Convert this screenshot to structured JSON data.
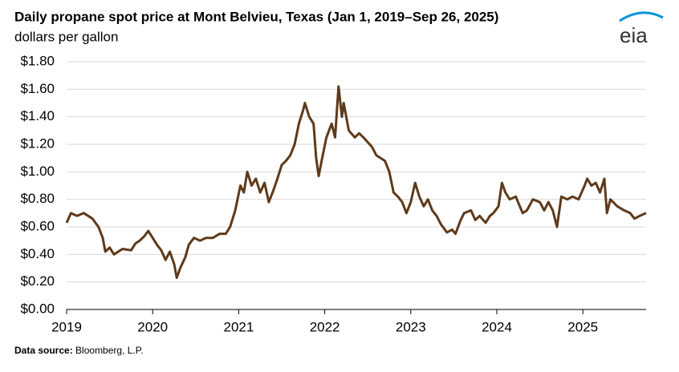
{
  "chart_data": {
    "type": "line",
    "title": "Daily propane spot price at Mont Belvieu, Texas (Jan 1, 2019–Sep 26, 2025)",
    "subtitle": "dollars per gallon",
    "logo": "eia",
    "source_label": "Data source:",
    "source": "Bloomberg, L.P.",
    "xlim": [
      2019,
      2025.735
    ],
    "xticks": [
      2019,
      2020,
      2021,
      2022,
      2023,
      2024,
      2025
    ],
    "ylim": [
      0,
      1.8
    ],
    "yticks": [
      {
        "value": 0,
        "label": "$0.00"
      },
      {
        "value": 0.2,
        "label": "$0.20"
      },
      {
        "value": 0.4,
        "label": "$0.40"
      },
      {
        "value": 0.6,
        "label": "$0.60"
      },
      {
        "value": 0.8,
        "label": "$0.80"
      },
      {
        "value": 1.0,
        "label": "$1.00"
      },
      {
        "value": 1.2,
        "label": "$1.20"
      },
      {
        "value": 1.4,
        "label": "$1.40"
      },
      {
        "value": 1.6,
        "label": "$1.60"
      },
      {
        "value": 1.8,
        "label": "$1.80"
      }
    ],
    "grid": true,
    "x": [
      2019,
      2019.05,
      2019.12,
      2019.2,
      2019.3,
      2019.37,
      2019.42,
      2019.45,
      2019.5,
      2019.55,
      2019.65,
      2019.75,
      2019.8,
      2019.85,
      2019.9,
      2019.95,
      2020.0,
      2020.05,
      2020.1,
      2020.15,
      2020.2,
      2020.25,
      2020.28,
      2020.32,
      2020.38,
      2020.42,
      2020.48,
      2020.55,
      2020.62,
      2020.7,
      2020.78,
      2020.85,
      2020.9,
      2020.96,
      2021.02,
      2021.06,
      2021.1,
      2021.15,
      2021.2,
      2021.25,
      2021.3,
      2021.35,
      2021.4,
      2021.45,
      2021.5,
      2021.55,
      2021.6,
      2021.65,
      2021.7,
      2021.75,
      2021.77,
      2021.82,
      2021.87,
      2021.9,
      2021.93,
      2021.97,
      2022.02,
      2022.08,
      2022.12,
      2022.16,
      2022.2,
      2022.22,
      2022.28,
      2022.35,
      2022.4,
      2022.45,
      2022.55,
      2022.6,
      2022.7,
      2022.75,
      2022.8,
      2022.85,
      2022.9,
      2022.95,
      2023.0,
      2023.05,
      2023.1,
      2023.15,
      2023.2,
      2023.25,
      2023.3,
      2023.35,
      2023.42,
      2023.48,
      2023.52,
      2023.58,
      2023.62,
      2023.7,
      2023.75,
      2023.8,
      2023.87,
      2023.92,
      2023.96,
      2024.02,
      2024.06,
      2024.1,
      2024.15,
      2024.22,
      2024.3,
      2024.35,
      2024.42,
      2024.5,
      2024.55,
      2024.6,
      2024.65,
      2024.7,
      2024.75,
      2024.82,
      2024.88,
      2024.95,
      2025.02,
      2025.05,
      2025.1,
      2025.15,
      2025.2,
      2025.25,
      2025.28,
      2025.32,
      2025.4,
      2025.48,
      2025.55,
      2025.6,
      2025.66,
      2025.735
    ],
    "series": [
      {
        "name": "propane spot price",
        "color": "#5e3a1a",
        "values": [
          0.63,
          0.7,
          0.68,
          0.7,
          0.66,
          0.6,
          0.52,
          0.42,
          0.45,
          0.4,
          0.44,
          0.43,
          0.48,
          0.5,
          0.53,
          0.57,
          0.52,
          0.47,
          0.43,
          0.36,
          0.42,
          0.33,
          0.23,
          0.3,
          0.38,
          0.47,
          0.52,
          0.5,
          0.52,
          0.52,
          0.55,
          0.55,
          0.6,
          0.72,
          0.9,
          0.85,
          1.0,
          0.9,
          0.95,
          0.85,
          0.92,
          0.78,
          0.86,
          0.95,
          1.05,
          1.08,
          1.12,
          1.2,
          1.35,
          1.45,
          1.5,
          1.4,
          1.35,
          1.1,
          0.97,
          1.1,
          1.25,
          1.35,
          1.25,
          1.62,
          1.4,
          1.5,
          1.3,
          1.25,
          1.28,
          1.25,
          1.18,
          1.12,
          1.08,
          1.0,
          0.85,
          0.82,
          0.78,
          0.7,
          0.78,
          0.92,
          0.82,
          0.75,
          0.8,
          0.72,
          0.68,
          0.62,
          0.56,
          0.58,
          0.55,
          0.65,
          0.7,
          0.72,
          0.65,
          0.68,
          0.63,
          0.68,
          0.7,
          0.75,
          0.92,
          0.85,
          0.8,
          0.82,
          0.7,
          0.72,
          0.8,
          0.78,
          0.72,
          0.78,
          0.72,
          0.6,
          0.82,
          0.8,
          0.82,
          0.8,
          0.9,
          0.95,
          0.9,
          0.92,
          0.85,
          0.95,
          0.7,
          0.8,
          0.75,
          0.72,
          0.7,
          0.66,
          0.68,
          0.7
        ]
      }
    ]
  }
}
